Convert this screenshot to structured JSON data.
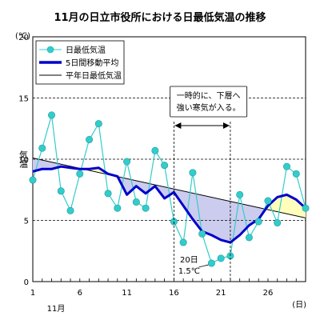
{
  "chart_data": {
    "type": "line",
    "title": "11月の日立市役所における日最低気温の推移",
    "y_unit": "(℃)",
    "ylabel": "気温",
    "x_unit": "(日)",
    "month_label": "11月",
    "ylim": [
      0,
      20
    ],
    "xlim": [
      1,
      30
    ],
    "y_ticks": [
      0,
      5,
      10,
      15,
      20
    ],
    "x_ticks": [
      1,
      6,
      11,
      16,
      21,
      26
    ],
    "grid": "dashed horizontal lines at 5, 10 and 15",
    "legend_position": "top-left",
    "series": [
      {
        "name": "日最低気温",
        "style": "markers",
        "color": "#33cccc",
        "x": [
          1,
          2,
          3,
          4,
          5,
          6,
          7,
          8,
          9,
          10,
          11,
          12,
          13,
          14,
          15,
          16,
          17,
          18,
          19,
          20,
          21,
          22,
          23,
          24,
          25,
          26,
          27,
          28,
          29,
          30
        ],
        "values": [
          8.3,
          10.9,
          13.6,
          7.4,
          5.8,
          8.8,
          11.6,
          12.9,
          7.2,
          6.0,
          9.8,
          6.5,
          6.0,
          10.7,
          9.5,
          4.9,
          3.2,
          8.9,
          3.9,
          1.5,
          1.9,
          2.1,
          7.1,
          3.6,
          4.9,
          6.6,
          4.8,
          9.4,
          8.8,
          6.0
        ]
      },
      {
        "name": "5日間移動平均",
        "style": "thick-line",
        "color": "#0000cc",
        "x": [
          1,
          2,
          3,
          4,
          5,
          6,
          7,
          8,
          9,
          10,
          11,
          12,
          13,
          14,
          15,
          16,
          17,
          18,
          19,
          20,
          21,
          22,
          23,
          24,
          25,
          26,
          27,
          28,
          29,
          30
        ],
        "values": [
          9.0,
          9.2,
          9.2,
          9.4,
          9.3,
          9.2,
          9.2,
          9.3,
          8.8,
          8.6,
          7.1,
          7.8,
          7.2,
          7.8,
          6.8,
          7.3,
          6.2,
          5.1,
          4.1,
          3.8,
          3.4,
          3.2,
          3.8,
          4.6,
          5.1,
          6.2,
          6.9,
          7.1,
          6.7,
          6.0
        ]
      },
      {
        "name": "平年日最低気温",
        "style": "thin-line",
        "color": "#000000",
        "x": [
          1,
          30
        ],
        "values": [
          10.1,
          5.2
        ]
      }
    ],
    "fills": {
      "below_normal_color": "#ccccee",
      "above_normal_color": "#ffffbb"
    },
    "annotations": [
      {
        "lines": [
          "一時的に、下層へ",
          "強い寒気が入る。"
        ],
        "span_x": [
          16,
          22
        ]
      },
      {
        "lines": [
          "20日",
          "1.5℃"
        ],
        "x": 20,
        "y": 1.5
      }
    ]
  }
}
